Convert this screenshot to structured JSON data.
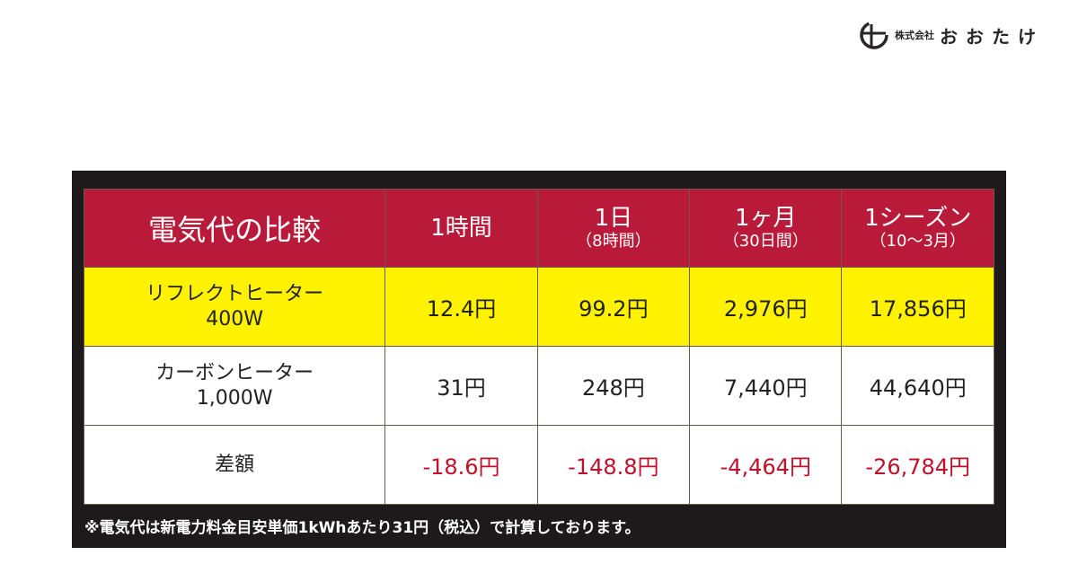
{
  "logo": {
    "corp": "株式会社",
    "name": "おおたけ"
  },
  "table": {
    "header": [
      {
        "main": "電気代の比較",
        "sub": ""
      },
      {
        "main": "1時間",
        "sub": ""
      },
      {
        "main": "1日",
        "sub": "（8時間）"
      },
      {
        "main": "1ヶ月",
        "sub": "（30日間）"
      },
      {
        "main": "1シーズン",
        "sub": "（10〜3月）"
      }
    ],
    "rows": [
      {
        "label1": "リフレクトヒーター",
        "label2": "400W",
        "values": [
          "12.4円",
          "99.2円",
          "2,976円",
          "17,856円"
        ],
        "highlight": "#fff200"
      },
      {
        "label1": "カーボンヒーター",
        "label2": "1,000W",
        "values": [
          "31円",
          "248円",
          "7,440円",
          "44,640円"
        ]
      },
      {
        "label1": "差額",
        "label2": "",
        "values": [
          "-18.6円",
          "-148.8円",
          "-4,464円",
          "-26,784円"
        ],
        "value_color": "#c0102a"
      }
    ]
  },
  "footnote": "※電気代は新電力料金目安単価1kWhあたり31円（税込）で計算しております。",
  "colors": {
    "header": "#ba1a39",
    "panel": "#1e1a1b"
  }
}
